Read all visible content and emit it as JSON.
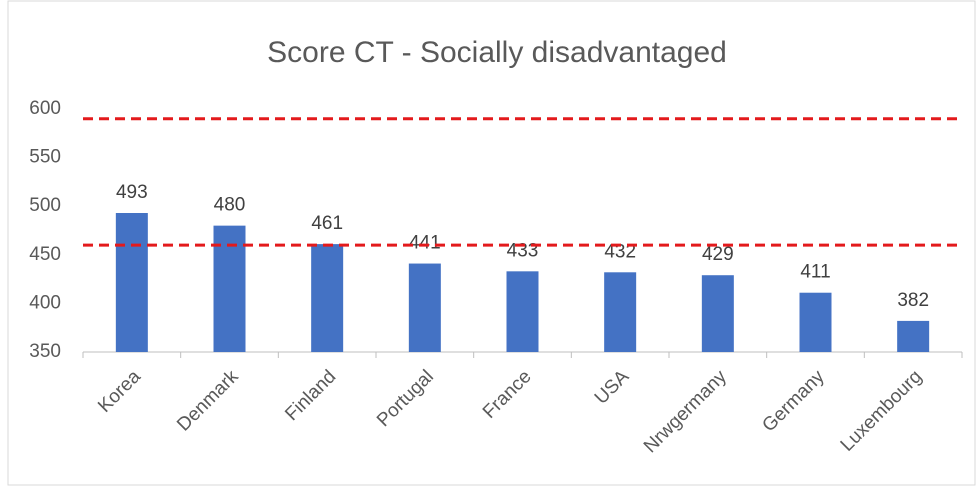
{
  "chart_data": {
    "type": "bar",
    "title": "Score CT - Socially disadvantaged",
    "categories": [
      "Korea",
      "Denmark",
      "Finland",
      "Portugal",
      "France",
      "USA",
      "Nrwgermany",
      "Germany",
      "Luxembourg"
    ],
    "values": [
      493,
      480,
      461,
      441,
      433,
      432,
      429,
      411,
      382
    ],
    "color": "#4472c4",
    "ylim": [
      350,
      600
    ],
    "yticks": [
      350,
      400,
      450,
      500,
      550,
      600
    ],
    "grid": false,
    "reference_lines": [
      590,
      460
    ],
    "reference_color": "#e31a1c"
  }
}
